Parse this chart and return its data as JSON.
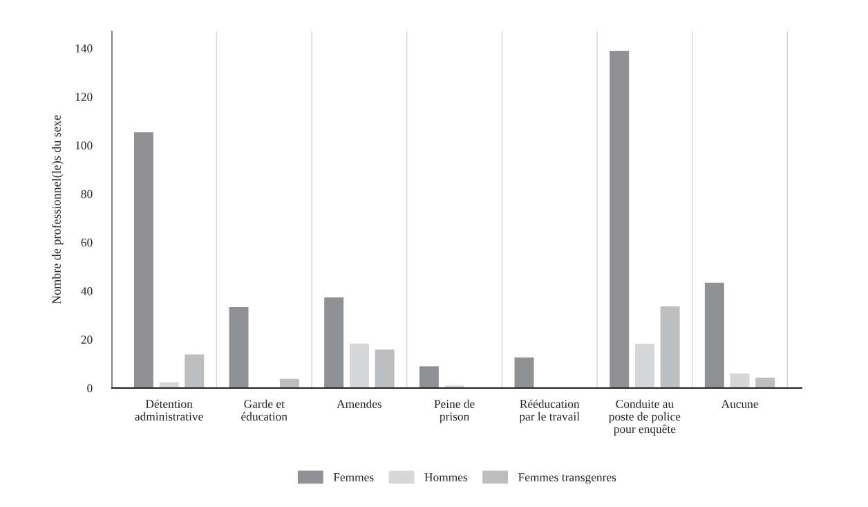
{
  "chart_data": {
    "type": "bar",
    "ylabel": "Nombre de professionnel(le)s du sexe",
    "categories": [
      "Détention\nadministrative",
      "Garde et\néducation",
      "Amendes",
      "Peine de\nprison",
      "Rééducation\npar le travail",
      "Conduite au\nposte de police\npour enquête",
      "Aucune"
    ],
    "series": [
      {
        "name": "Femmes",
        "color": "#909195",
        "values": [
          105.5,
          33.5,
          37.5,
          9.2,
          12.8,
          139,
          43.6
        ]
      },
      {
        "name": "Hommes",
        "color": "#d6d7d8",
        "values": [
          2.6,
          null,
          18.5,
          1.3,
          null,
          18.4,
          6.2
        ]
      },
      {
        "name": "Femmes transgenres",
        "color": "#bdbebf",
        "values": [
          14,
          4,
          16,
          null,
          null,
          33.8,
          4.5
        ]
      }
    ],
    "ylim": [
      0,
      147
    ],
    "yticks": [
      0,
      20,
      40,
      60,
      80,
      100,
      120,
      140
    ],
    "grid": "x",
    "legend": "bottom"
  }
}
